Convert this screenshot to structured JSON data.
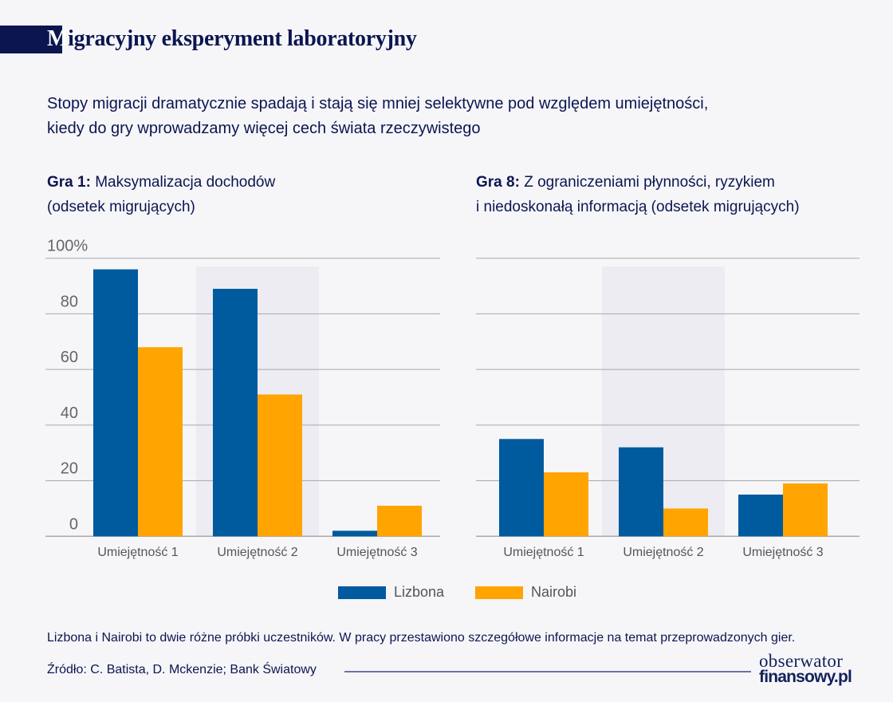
{
  "title": {
    "first_letter": "M",
    "rest": "igracyjny eksperyment laboratoryjny"
  },
  "subtitle": [
    "Stopy migracji dramatycznie spadają i stają się mniej selektywne pod względem umiejętności,",
    "kiedy do gry wprowadzamy więcej cech świata rzeczywistego"
  ],
  "colors": {
    "lizbona": "#005a9e",
    "nairobi": "#ffa400",
    "highlight": "#ececf2",
    "grid": "#a9a9ad",
    "text": "#0b1650"
  },
  "chart_data": [
    {
      "type": "bar",
      "title_bold": "Gra 1:",
      "title": "Maksymalizacja dochodów",
      "title_line2": "(odsetek migrujących)",
      "categories": [
        "Umiejętność 1",
        "Umiejętność 2",
        "Umiejętność 3"
      ],
      "series": [
        {
          "name": "Lizbona",
          "values": [
            96,
            89,
            2
          ]
        },
        {
          "name": "Nairobi",
          "values": [
            68,
            51,
            11
          ]
        }
      ],
      "ylim": [
        0,
        100
      ],
      "yticks": [
        0,
        20,
        40,
        60,
        80,
        100
      ],
      "ytick_labels": [
        "0",
        "20",
        "40",
        "60",
        "80",
        "100%"
      ],
      "grid": true,
      "highlighted_category": "Umiejętność 2"
    },
    {
      "type": "bar",
      "title_bold": "Gra 8:",
      "title": "Z ograniczeniami płynności, ryzykiem",
      "title_line2": "i niedoskonałą informacją (odsetek migrujących)",
      "categories": [
        "Umiejętność 1",
        "Umiejętność 2",
        "Umiejętność 3"
      ],
      "series": [
        {
          "name": "Lizbona",
          "values": [
            35,
            32,
            15
          ]
        },
        {
          "name": "Nairobi",
          "values": [
            23,
            10,
            19
          ]
        }
      ],
      "ylim": [
        0,
        100
      ],
      "yticks": [
        0,
        20,
        40,
        60,
        80,
        100
      ],
      "grid": true,
      "highlighted_category": "Umiejętność 2"
    }
  ],
  "legend": {
    "position": "bottom-center",
    "items": [
      "Lizbona",
      "Nairobi"
    ]
  },
  "note": "Lizbona i Nairobi to dwie różne próbki uczestników. W pracy przestawiono szczegółowe informacje na temat przeprowadzonych gier.",
  "source": "Źródło: C. Batista, D. Mckenzie; Bank Światowy",
  "logo": {
    "line1": "obserwator",
    "line2": "finansowy.pl"
  }
}
